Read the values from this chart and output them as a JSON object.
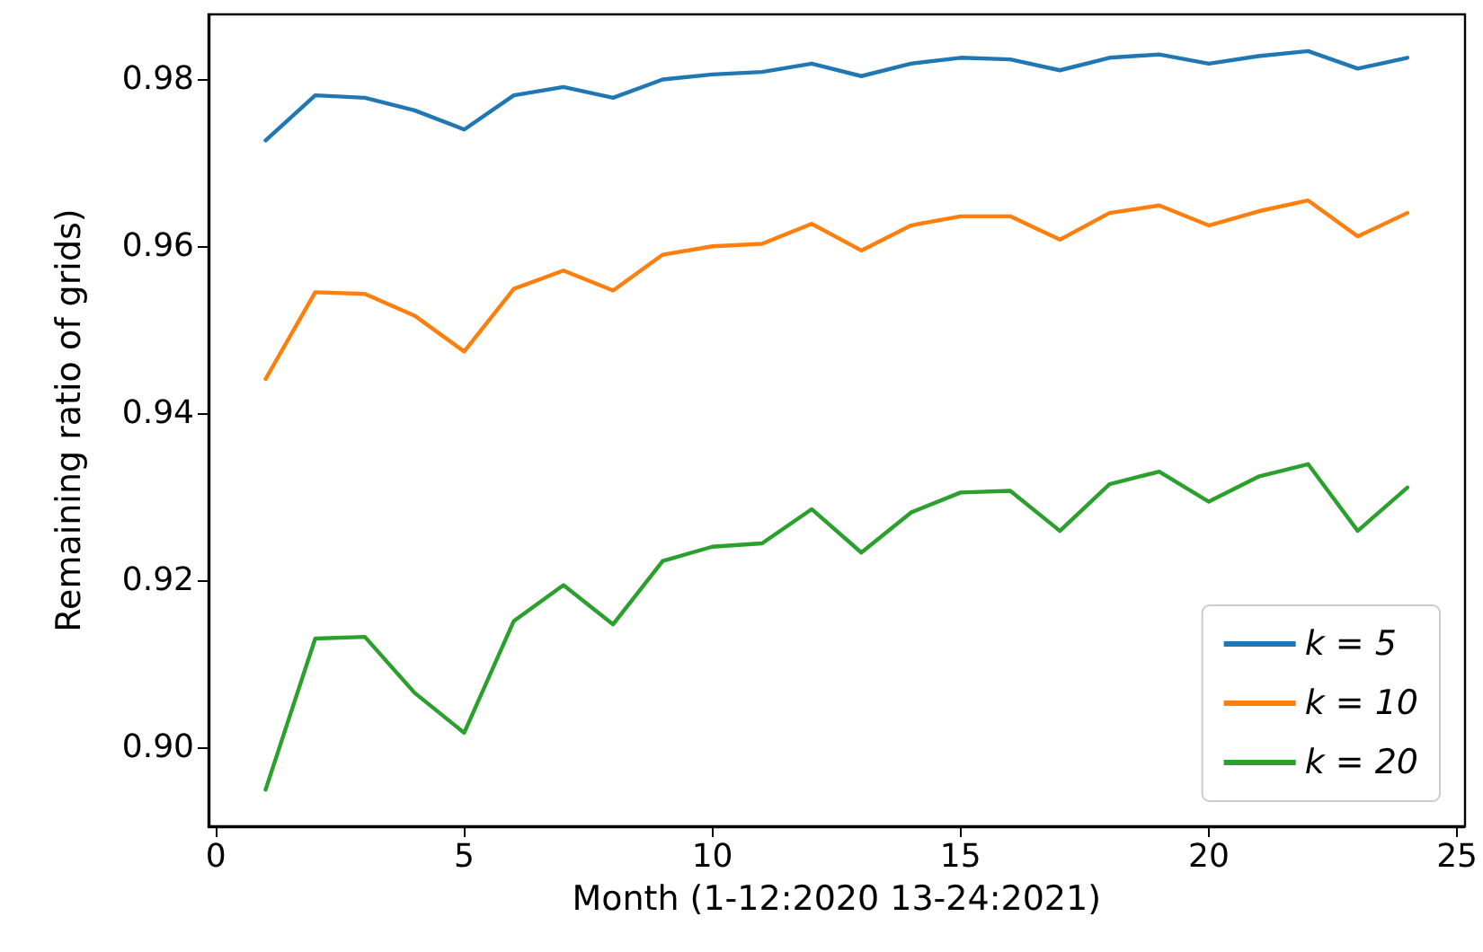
{
  "chart_data": {
    "type": "line",
    "xlabel": "Month (1-12:2020 13-24:2021)",
    "ylabel": "Remaining ratio of grids)",
    "x": [
      1,
      2,
      3,
      4,
      5,
      6,
      7,
      8,
      9,
      10,
      11,
      12,
      13,
      14,
      15,
      16,
      17,
      18,
      19,
      20,
      21,
      22,
      23,
      24
    ],
    "series": [
      {
        "name": "k = 5",
        "color": "#1f77b4",
        "values": [
          0.9727,
          0.9781,
          0.9778,
          0.9763,
          0.974,
          0.9781,
          0.9791,
          0.9778,
          0.98,
          0.9806,
          0.9809,
          0.9819,
          0.9804,
          0.9819,
          0.9826,
          0.9824,
          0.9811,
          0.9826,
          0.983,
          0.9819,
          0.9828,
          0.9834,
          0.9813,
          0.9826
        ]
      },
      {
        "name": "k = 10",
        "color": "#ff7f0e",
        "values": [
          0.9441,
          0.9545,
          0.9543,
          0.9517,
          0.9474,
          0.9549,
          0.9571,
          0.9547,
          0.959,
          0.96,
          0.9603,
          0.9627,
          0.9595,
          0.9625,
          0.9636,
          0.9636,
          0.9608,
          0.964,
          0.9649,
          0.9625,
          0.9642,
          0.9655,
          0.9612,
          0.964
        ]
      },
      {
        "name": "k = 20",
        "color": "#2ca02c",
        "values": [
          0.8949,
          0.913,
          0.9132,
          0.9065,
          0.9017,
          0.9151,
          0.9194,
          0.9147,
          0.9223,
          0.924,
          0.9244,
          0.9285,
          0.9233,
          0.9281,
          0.9305,
          0.9307,
          0.9259,
          0.9315,
          0.933,
          0.9294,
          0.9324,
          0.9339,
          0.9259,
          0.9311
        ]
      }
    ],
    "xlim": [
      -0.15,
      25.15
    ],
    "xticks": [
      0,
      5,
      10,
      15,
      20,
      25
    ],
    "ylim": [
      0.8905,
      0.9878
    ],
    "yticks": [
      {
        "value": 0.9,
        "label": "0.90"
      },
      {
        "value": 0.92,
        "label": "0.92"
      },
      {
        "value": 0.94,
        "label": "0.94"
      },
      {
        "value": 0.96,
        "label": "0.96"
      },
      {
        "value": 0.98,
        "label": "0.98"
      }
    ],
    "legend": "bottom right",
    "marker": "none",
    "line_style": "solid",
    "grid": false
  }
}
